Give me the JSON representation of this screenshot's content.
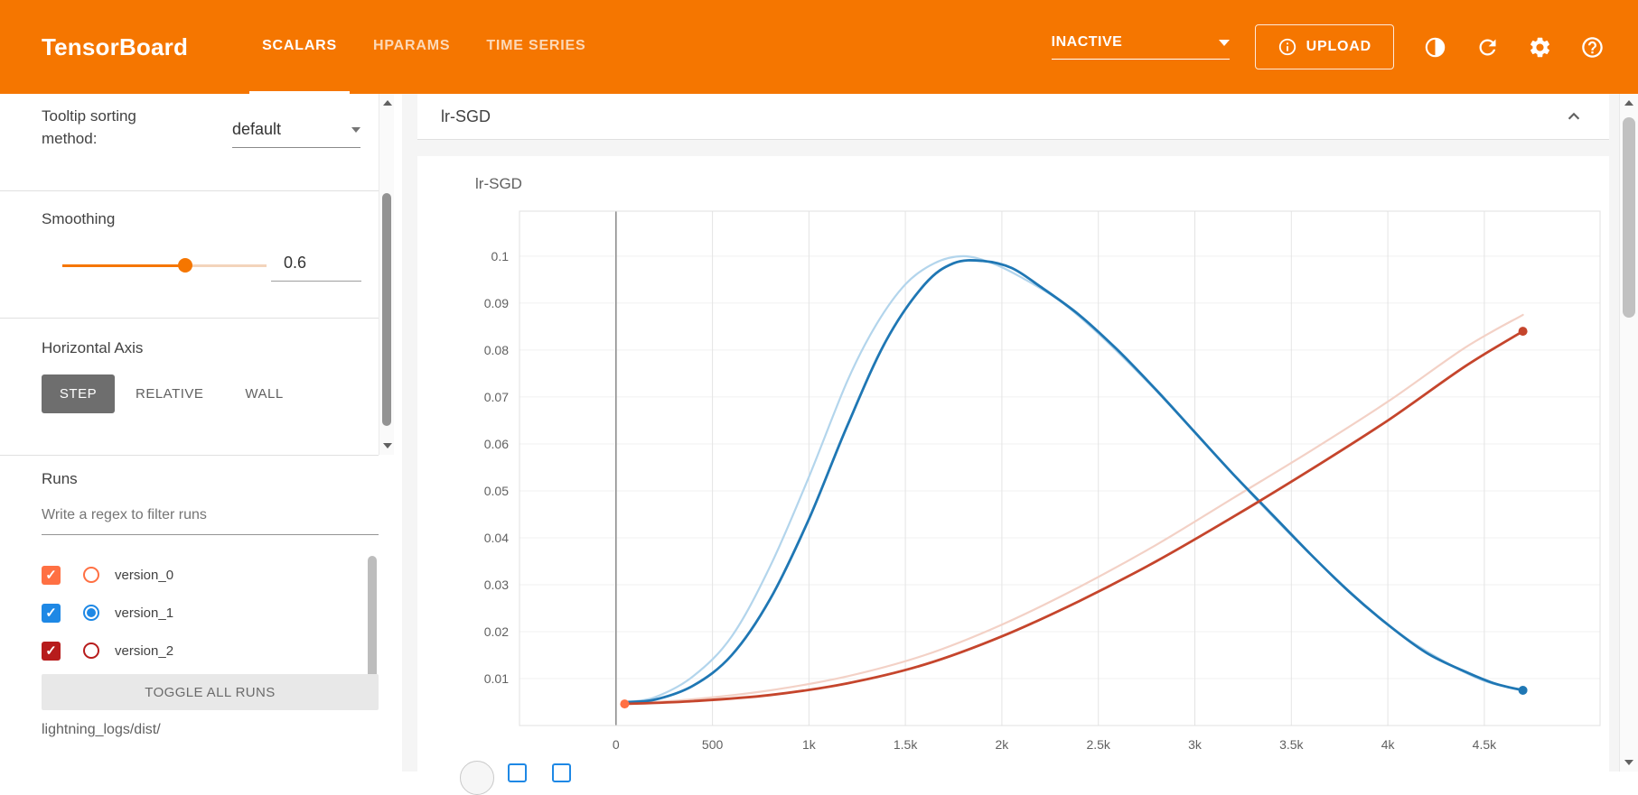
{
  "header": {
    "logo": "TensorBoard",
    "bar_color": "#f57600",
    "tabs": [
      {
        "label": "SCALARS",
        "active": true
      },
      {
        "label": "HPARAMS",
        "active": false
      },
      {
        "label": "TIME SERIES",
        "active": false
      }
    ],
    "status": "INACTIVE",
    "upload_label": "UPLOAD",
    "icons": [
      "brightness-icon",
      "refresh-icon",
      "settings-icon",
      "help-icon"
    ]
  },
  "sidebar": {
    "tooltip_sorting_label": "Tooltip sorting method:",
    "tooltip_sorting_value": "default",
    "smoothing_label": "Smoothing",
    "smoothing_value": "0.6",
    "smoothing_percent": 60,
    "horizontal_axis_label": "Horizontal Axis",
    "axis_options": [
      {
        "label": "STEP",
        "active": true
      },
      {
        "label": "RELATIVE",
        "active": false
      },
      {
        "label": "WALL",
        "active": false
      }
    ],
    "runs_title": "Runs",
    "runs_filter_placeholder": "Write a regex to filter runs",
    "runs": [
      {
        "label": "version_0",
        "color": "#ff7043",
        "checked": true,
        "radio_selected": false
      },
      {
        "label": "version_1",
        "color": "#1e88e5",
        "checked": true,
        "radio_selected": true
      },
      {
        "label": "version_2",
        "color": "#b71c1c",
        "checked": true,
        "radio_selected": false
      }
    ],
    "toggle_all_label": "TOGGLE ALL RUNS",
    "runs_path": "lightning_logs/dist/"
  },
  "main": {
    "group_title": "lr-SGD"
  },
  "chart_data": {
    "type": "line",
    "title": "lr-SGD",
    "xlabel": "",
    "ylabel": "",
    "xlim": [
      -500,
      5100
    ],
    "ylim": [
      0,
      0.1096
    ],
    "grid": true,
    "legend": "none",
    "x_ticks": [
      {
        "v": 0,
        "label": "0"
      },
      {
        "v": 500,
        "label": "500"
      },
      {
        "v": 1000,
        "label": "1k"
      },
      {
        "v": 1500,
        "label": "1.5k"
      },
      {
        "v": 2000,
        "label": "2k"
      },
      {
        "v": 2500,
        "label": "2.5k"
      },
      {
        "v": 3000,
        "label": "3k"
      },
      {
        "v": 3500,
        "label": "3.5k"
      },
      {
        "v": 4000,
        "label": "4k"
      },
      {
        "v": 4500,
        "label": "4.5k"
      }
    ],
    "y_ticks": [
      {
        "v": 0.01,
        "label": "0.01"
      },
      {
        "v": 0.02,
        "label": "0.02"
      },
      {
        "v": 0.03,
        "label": "0.03"
      },
      {
        "v": 0.04,
        "label": "0.04"
      },
      {
        "v": 0.05,
        "label": "0.05"
      },
      {
        "v": 0.06,
        "label": "0.06"
      },
      {
        "v": 0.07,
        "label": "0.07"
      },
      {
        "v": 0.08,
        "label": "0.08"
      },
      {
        "v": 0.09,
        "label": "0.09"
      },
      {
        "v": 0.1,
        "label": "0.1"
      }
    ],
    "series": [
      {
        "name": "version_1 (unsmoothed)",
        "color": "#b3d5ec",
        "width": 2.2,
        "points": [
          [
            45,
            0.005
          ],
          [
            200,
            0.006
          ],
          [
            400,
            0.0105
          ],
          [
            600,
            0.019
          ],
          [
            800,
            0.034
          ],
          [
            1000,
            0.053
          ],
          [
            1200,
            0.0735
          ],
          [
            1350,
            0.0855
          ],
          [
            1500,
            0.094
          ],
          [
            1650,
            0.0985
          ],
          [
            1800,
            0.1
          ],
          [
            1950,
            0.0985
          ],
          [
            2100,
            0.0955
          ],
          [
            2300,
            0.0905
          ],
          [
            2500,
            0.0835
          ],
          [
            2700,
            0.0755
          ],
          [
            2900,
            0.067
          ],
          [
            3100,
            0.058
          ],
          [
            3300,
            0.049
          ],
          [
            3500,
            0.0405
          ],
          [
            3700,
            0.0325
          ],
          [
            3900,
            0.025
          ],
          [
            4100,
            0.0185
          ],
          [
            4300,
            0.0135
          ],
          [
            4500,
            0.0095
          ],
          [
            4700,
            0.0075
          ]
        ]
      },
      {
        "name": "version_2 (unsmoothed)",
        "color": "#f3d1c6",
        "width": 2.2,
        "points": [
          [
            45,
            0.0046
          ],
          [
            400,
            0.0056
          ],
          [
            800,
            0.0075
          ],
          [
            1200,
            0.0105
          ],
          [
            1600,
            0.015
          ],
          [
            2000,
            0.0215
          ],
          [
            2400,
            0.0295
          ],
          [
            2800,
            0.0385
          ],
          [
            3200,
            0.0485
          ],
          [
            3600,
            0.0585
          ],
          [
            4000,
            0.069
          ],
          [
            4400,
            0.0805
          ],
          [
            4700,
            0.0875
          ]
        ]
      },
      {
        "name": "version_1",
        "color": "#1f77b4",
        "width": 2.8,
        "points": [
          [
            45,
            0.005
          ],
          [
            200,
            0.0055
          ],
          [
            400,
            0.0085
          ],
          [
            600,
            0.015
          ],
          [
            800,
            0.027
          ],
          [
            1000,
            0.044
          ],
          [
            1200,
            0.064
          ],
          [
            1400,
            0.082
          ],
          [
            1600,
            0.094
          ],
          [
            1750,
            0.0985
          ],
          [
            1900,
            0.099
          ],
          [
            2050,
            0.0975
          ],
          [
            2200,
            0.0935
          ],
          [
            2400,
            0.0875
          ],
          [
            2600,
            0.08
          ],
          [
            2800,
            0.0715
          ],
          [
            3000,
            0.0625
          ],
          [
            3200,
            0.0535
          ],
          [
            3400,
            0.045
          ],
          [
            3600,
            0.0365
          ],
          [
            3800,
            0.0285
          ],
          [
            4000,
            0.0215
          ],
          [
            4200,
            0.0155
          ],
          [
            4400,
            0.0115
          ],
          [
            4550,
            0.009
          ],
          [
            4700,
            0.0075
          ]
        ]
      },
      {
        "name": "version_2",
        "color": "#c5452c",
        "width": 2.8,
        "points": [
          [
            45,
            0.0046
          ],
          [
            400,
            0.0052
          ],
          [
            800,
            0.0065
          ],
          [
            1200,
            0.009
          ],
          [
            1600,
            0.013
          ],
          [
            2000,
            0.019
          ],
          [
            2400,
            0.0265
          ],
          [
            2800,
            0.035
          ],
          [
            3200,
            0.0445
          ],
          [
            3600,
            0.0545
          ],
          [
            4000,
            0.065
          ],
          [
            4400,
            0.0765
          ],
          [
            4700,
            0.084
          ]
        ]
      }
    ],
    "markers": [
      {
        "name": "version_0 endpoint",
        "x": 45,
        "y": 0.0046,
        "color": "#ff7043"
      },
      {
        "name": "version_2 endpoint",
        "x": 4700,
        "y": 0.084,
        "color": "#c5452c"
      },
      {
        "name": "version_1 endpoint",
        "x": 4700,
        "y": 0.0075,
        "color": "#1f77b4"
      }
    ]
  }
}
